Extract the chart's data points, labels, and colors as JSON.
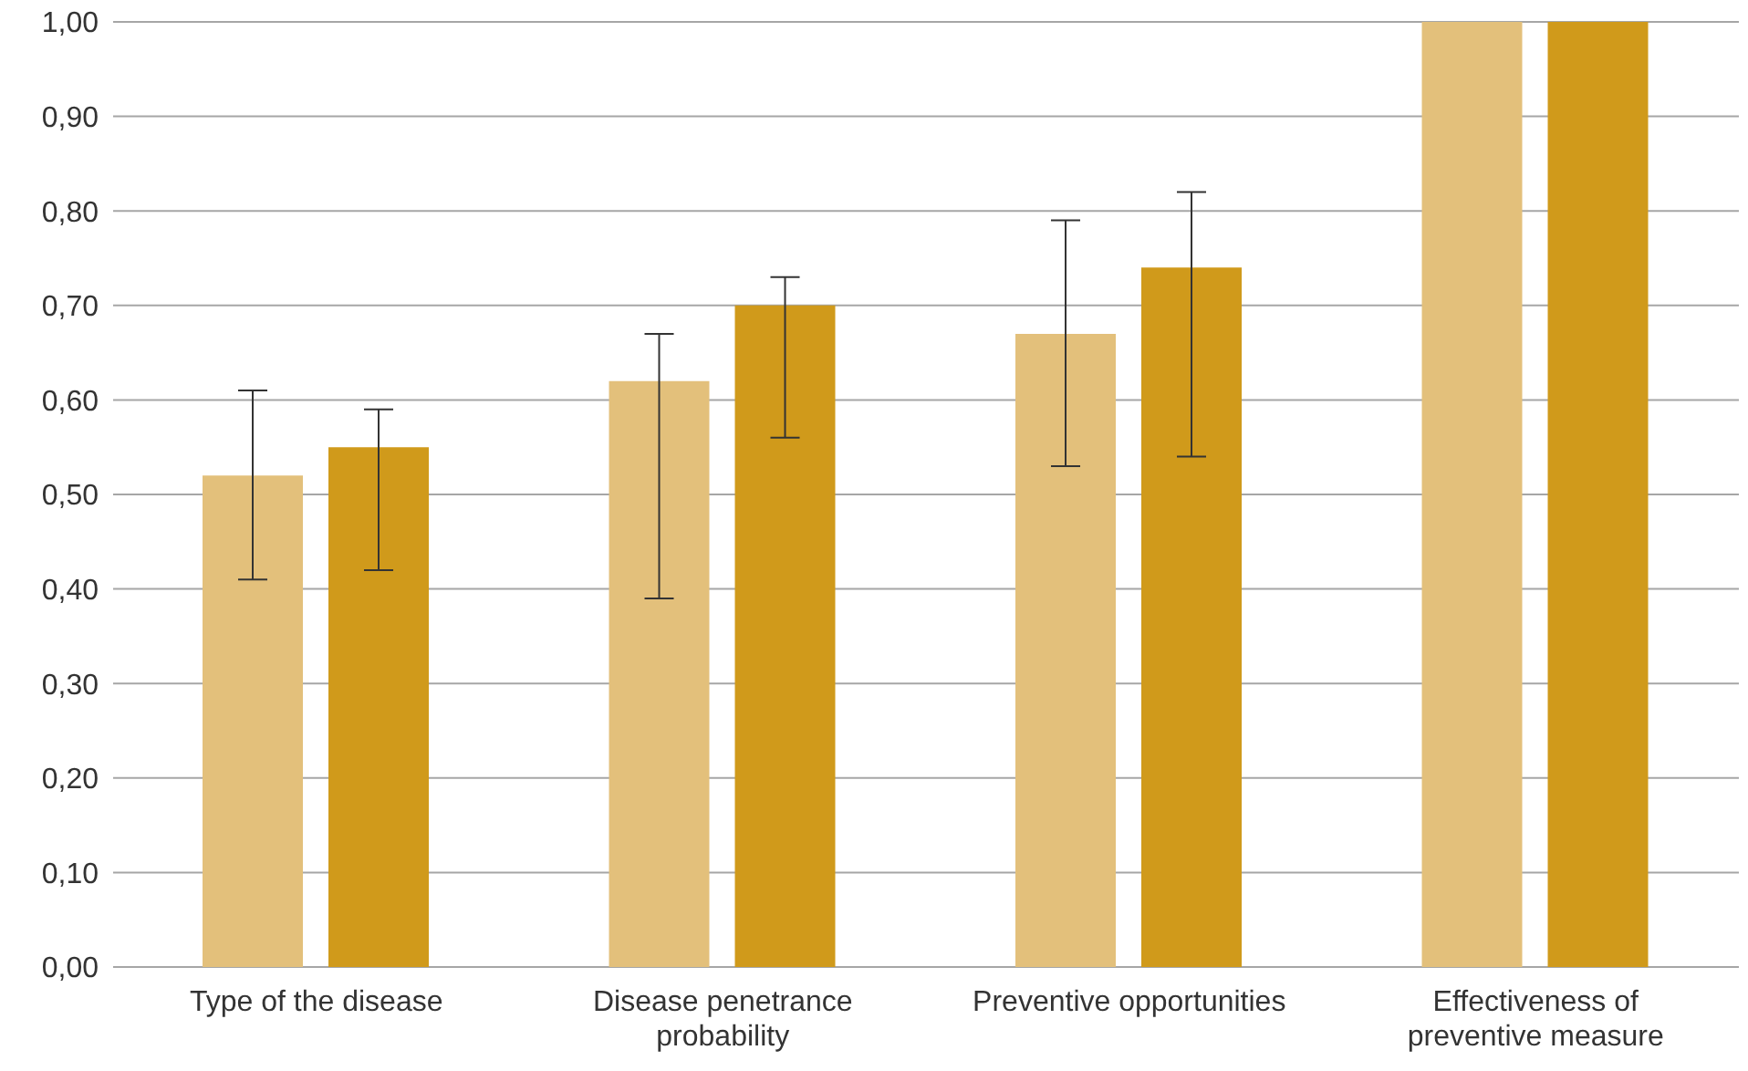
{
  "chart_data": {
    "type": "bar",
    "categories": [
      "Type of the disease",
      "Disease penetrance probability",
      "Preventive opportunities",
      "Effectiveness of preventive measure"
    ],
    "series": [
      {
        "color": "#e3c07b",
        "values": [
          0.52,
          0.62,
          0.67,
          1.0
        ],
        "errors": [
          [
            0.41,
            0.61
          ],
          [
            0.39,
            0.67
          ],
          [
            0.53,
            0.79
          ],
          null
        ]
      },
      {
        "color": "#d09a1b",
        "values": [
          0.55,
          0.7,
          0.74,
          1.0
        ],
        "errors": [
          [
            0.42,
            0.59
          ],
          [
            0.56,
            0.73
          ],
          [
            0.54,
            0.82
          ],
          null
        ]
      }
    ],
    "ylim": [
      0,
      1
    ],
    "yticks": [
      {
        "value": 0,
        "label": "0,00"
      },
      {
        "value": 0.1,
        "label": "0,10"
      },
      {
        "value": 0.2,
        "label": "0,20"
      },
      {
        "value": 0.3,
        "label": "0,30"
      },
      {
        "value": 0.4,
        "label": "0,40"
      },
      {
        "value": 0.5,
        "label": "0,50"
      },
      {
        "value": 0.6,
        "label": "0,60"
      },
      {
        "value": 0.7,
        "label": "0,70"
      },
      {
        "value": 0.8,
        "label": "0,80"
      },
      {
        "value": 0.9,
        "label": "0,90"
      },
      {
        "value": 1,
        "label": "1,00"
      }
    ],
    "grid": "y"
  }
}
